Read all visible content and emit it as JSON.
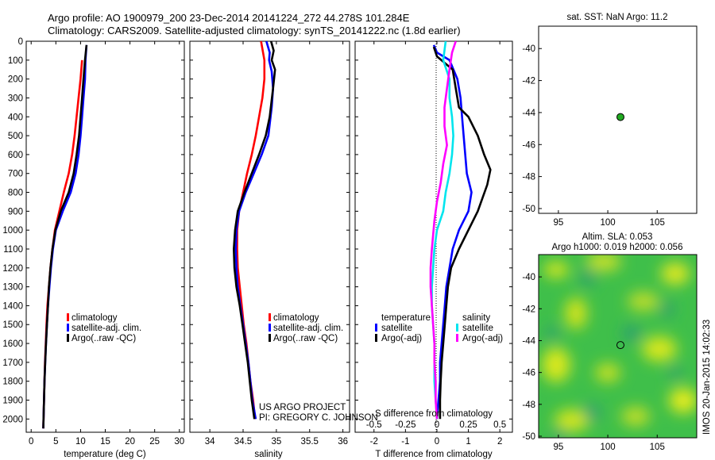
{
  "header": {
    "line1": "Argo profile: AO 1900979_200 23-Dec-2014 20141224_272 44.278S 101.284E",
    "line2": "Climatology: CARS2009. Satellite-adjusted climatology: synTS_20141222.nc (1.8d earlier)"
  },
  "credit": {
    "project": "US ARGO PROJECT",
    "pi": "PI: GREGORY C. JOHNSON"
  },
  "sst_title": "sat. SST: NaN Argo: 11.2",
  "sla_title": {
    "line1": "Altim. SLA: 0.053",
    "line2": "Argo h1000: 0.019 h2000: 0.056"
  },
  "watermark": "IMOS 20-Jan-2015 14:02:33",
  "colors": {
    "climatology": "#ff0000",
    "satellite_adj": "#0000ff",
    "argo": "#000000",
    "sal_satellite": "#00e5ee",
    "sal_argo": "#ff00ff",
    "map_marker": "#22aa22"
  },
  "chart_data": [
    {
      "type": "line",
      "panel": "temperature",
      "xlabel": "temperature (deg C)",
      "ylabel": "",
      "xlim": [
        -1,
        31
      ],
      "ylim": [
        2070,
        0
      ],
      "xticks": [
        "0",
        "5",
        "10",
        "15",
        "20",
        "25",
        "30"
      ],
      "yticks": [
        "0",
        "100",
        "200",
        "300",
        "400",
        "500",
        "600",
        "700",
        "800",
        "900",
        "1000",
        "1100",
        "1200",
        "1300",
        "1400",
        "1500",
        "1600",
        "1700",
        "1800",
        "1900",
        "2000"
      ],
      "legend": [
        "climatology",
        "satellite-adj. clim.",
        "Argo(..raw -QC)"
      ],
      "series": [
        {
          "name": "climatology",
          "color_key": "climatology",
          "points": [
            [
              10.3,
              100
            ],
            [
              10.0,
              200
            ],
            [
              9.6,
              300
            ],
            [
              9.2,
              400
            ],
            [
              8.8,
              500
            ],
            [
              8.3,
              600
            ],
            [
              7.6,
              700
            ],
            [
              6.6,
              800
            ],
            [
              5.7,
              900
            ],
            [
              4.8,
              1000
            ],
            [
              4.3,
              1100
            ],
            [
              3.9,
              1200
            ],
            [
              3.6,
              1300
            ],
            [
              3.3,
              1400
            ],
            [
              3.1,
              1500
            ],
            [
              2.95,
              1600
            ],
            [
              2.8,
              1700
            ],
            [
              2.7,
              1800
            ],
            [
              2.6,
              1900
            ],
            [
              2.5,
              2000
            ],
            [
              2.45,
              2050
            ]
          ]
        },
        {
          "name": "satellite-adj. clim.",
          "color_key": "satellite_adj",
          "points": [
            [
              11.2,
              20
            ],
            [
              11.0,
              100
            ],
            [
              10.9,
              200
            ],
            [
              10.6,
              300
            ],
            [
              10.3,
              400
            ],
            [
              10.0,
              500
            ],
            [
              9.6,
              600
            ],
            [
              9.0,
              700
            ],
            [
              8.0,
              800
            ],
            [
              6.4,
              900
            ],
            [
              5.0,
              1000
            ],
            [
              4.4,
              1100
            ],
            [
              4.0,
              1200
            ],
            [
              3.7,
              1300
            ],
            [
              3.4,
              1400
            ],
            [
              3.2,
              1500
            ],
            [
              3.0,
              1600
            ],
            [
              2.85,
              1700
            ],
            [
              2.7,
              1800
            ],
            [
              2.6,
              1900
            ],
            [
              2.5,
              2000
            ],
            [
              2.45,
              2050
            ]
          ]
        },
        {
          "name": "Argo(..raw -QC)",
          "color_key": "argo",
          "points": [
            [
              11.2,
              20
            ],
            [
              10.9,
              100
            ],
            [
              10.6,
              200
            ],
            [
              10.3,
              300
            ],
            [
              10.0,
              400
            ],
            [
              9.7,
              500
            ],
            [
              9.2,
              600
            ],
            [
              8.6,
              700
            ],
            [
              7.6,
              800
            ],
            [
              6.0,
              900
            ],
            [
              4.9,
              1000
            ],
            [
              4.3,
              1100
            ],
            [
              3.9,
              1200
            ],
            [
              3.6,
              1300
            ],
            [
              3.4,
              1400
            ],
            [
              3.2,
              1500
            ],
            [
              3.0,
              1600
            ],
            [
              2.85,
              1700
            ],
            [
              2.7,
              1800
            ],
            [
              2.6,
              1900
            ],
            [
              2.5,
              2000
            ],
            [
              2.45,
              2050
            ]
          ]
        }
      ]
    },
    {
      "type": "line",
      "panel": "salinity",
      "xlabel": "salinity",
      "ylabel": "",
      "xlim": [
        33.7,
        36.1
      ],
      "ylim": [
        2070,
        0
      ],
      "xticks": [
        "34",
        "34.5",
        "35",
        "35.5",
        "36"
      ],
      "legend": [
        "climatology",
        "satellite-adj. clim.",
        "Argo(..raw -QC)"
      ],
      "series": [
        {
          "name": "climatology",
          "color_key": "climatology",
          "points": [
            [
              34.77,
              0
            ],
            [
              34.82,
              100
            ],
            [
              34.82,
              200
            ],
            [
              34.79,
              300
            ],
            [
              34.74,
              400
            ],
            [
              34.69,
              500
            ],
            [
              34.63,
              600
            ],
            [
              34.56,
              700
            ],
            [
              34.5,
              800
            ],
            [
              34.44,
              900
            ],
            [
              34.41,
              1000
            ],
            [
              34.41,
              1100
            ],
            [
              34.42,
              1200
            ],
            [
              34.45,
              1300
            ],
            [
              34.48,
              1400
            ],
            [
              34.51,
              1500
            ],
            [
              34.55,
              1600
            ],
            [
              34.58,
              1700
            ],
            [
              34.61,
              1800
            ],
            [
              34.65,
              1900
            ],
            [
              34.68,
              2000
            ]
          ]
        },
        {
          "name": "satellite-adj. clim.",
          "color_key": "satellite_adj",
          "points": [
            [
              34.85,
              0
            ],
            [
              34.9,
              60
            ],
            [
              34.89,
              100
            ],
            [
              34.93,
              160
            ],
            [
              34.95,
              250
            ],
            [
              34.93,
              350
            ],
            [
              34.88,
              500
            ],
            [
              34.78,
              600
            ],
            [
              34.66,
              700
            ],
            [
              34.54,
              800
            ],
            [
              34.44,
              900
            ],
            [
              34.4,
              1000
            ],
            [
              34.39,
              1100
            ],
            [
              34.4,
              1200
            ],
            [
              34.42,
              1300
            ],
            [
              34.46,
              1400
            ],
            [
              34.5,
              1500
            ],
            [
              34.54,
              1600
            ],
            [
              34.58,
              1700
            ],
            [
              34.61,
              1800
            ],
            [
              34.64,
              1900
            ],
            [
              34.69,
              2000
            ]
          ]
        },
        {
          "name": "Argo(..raw -QC)",
          "color_key": "argo",
          "points": [
            [
              34.92,
              0
            ],
            [
              34.96,
              50
            ],
            [
              34.93,
              100
            ],
            [
              34.98,
              150
            ],
            [
              34.95,
              250
            ],
            [
              34.9,
              400
            ],
            [
              34.84,
              500
            ],
            [
              34.74,
              600
            ],
            [
              34.63,
              700
            ],
            [
              34.52,
              800
            ],
            [
              34.42,
              900
            ],
            [
              34.38,
              1000
            ],
            [
              34.36,
              1100
            ],
            [
              34.37,
              1200
            ],
            [
              34.4,
              1300
            ],
            [
              34.45,
              1400
            ],
            [
              34.49,
              1500
            ],
            [
              34.53,
              1600
            ],
            [
              34.57,
              1700
            ],
            [
              34.6,
              1800
            ],
            [
              34.63,
              1900
            ],
            [
              34.67,
              2000
            ]
          ]
        }
      ]
    },
    {
      "type": "line",
      "panel": "difference",
      "xlabel": "T difference from climatology",
      "x2label": "S difference from climatology",
      "ylabel": "",
      "xlim": [
        -2.6,
        2.4
      ],
      "ylim": [
        2070,
        0
      ],
      "xticks": [
        "-2",
        "-1",
        "0",
        "1",
        "2"
      ],
      "x2ticks": [
        "-0.5",
        "-0.25",
        "0",
        "0.25",
        "0.5"
      ],
      "x2lim": [
        -0.65,
        0.6
      ],
      "legend_headers": [
        "temperature",
        "salinity"
      ],
      "legend": [
        "satellite",
        "Argo(-adj)",
        "satellite",
        "Argo(-adj)"
      ],
      "series": [
        {
          "name": "satellite",
          "quantity": "temperature",
          "color_key": "satellite_adj",
          "points": [
            [
              -0.1,
              20
            ],
            [
              0.0,
              60
            ],
            [
              0.4,
              100
            ],
            [
              0.65,
              200
            ],
            [
              0.75,
              300
            ],
            [
              0.8,
              400
            ],
            [
              0.85,
              500
            ],
            [
              0.9,
              600
            ],
            [
              0.95,
              700
            ],
            [
              1.1,
              800
            ],
            [
              1.0,
              900
            ],
            [
              0.7,
              1000
            ],
            [
              0.5,
              1100
            ],
            [
              0.4,
              1200
            ],
            [
              0.3,
              1300
            ],
            [
              0.25,
              1400
            ],
            [
              0.2,
              1500
            ],
            [
              0.15,
              1600
            ],
            [
              0.1,
              1700
            ],
            [
              0.1,
              1800
            ],
            [
              0.05,
              1900
            ],
            [
              0.0,
              2000
            ]
          ]
        },
        {
          "name": "Argo(-adj)",
          "quantity": "temperature",
          "color_key": "argo",
          "points": [
            [
              -0.1,
              30
            ],
            [
              0.0,
              80
            ],
            [
              0.5,
              150
            ],
            [
              0.6,
              250
            ],
            [
              0.7,
              350
            ],
            [
              1.0,
              400
            ],
            [
              1.3,
              500
            ],
            [
              1.5,
              600
            ],
            [
              1.7,
              680
            ],
            [
              1.6,
              760
            ],
            [
              1.3,
              900
            ],
            [
              0.7,
              1100
            ],
            [
              0.45,
              1200
            ],
            [
              0.35,
              1300
            ],
            [
              0.3,
              1400
            ],
            [
              0.25,
              1500
            ],
            [
              0.2,
              1600
            ],
            [
              0.15,
              1700
            ],
            [
              0.12,
              1800
            ],
            [
              0.1,
              1900
            ],
            [
              0.1,
              2000
            ]
          ]
        },
        {
          "name": "satellite",
          "quantity": "salinity",
          "color_key": "sal_satellite",
          "points": [
            [
              0.07,
              0
            ],
            [
              0.05,
              100
            ],
            [
              0.1,
              200
            ],
            [
              0.1,
              300
            ],
            [
              0.12,
              400
            ],
            [
              0.13,
              500
            ],
            [
              0.12,
              600
            ],
            [
              0.1,
              700
            ],
            [
              0.07,
              800
            ],
            [
              0.05,
              900
            ],
            [
              0.0,
              1000
            ],
            [
              -0.02,
              1100
            ],
            [
              -0.03,
              1200
            ],
            [
              -0.04,
              1300
            ],
            [
              -0.04,
              1400
            ],
            [
              -0.03,
              1500
            ],
            [
              -0.02,
              1600
            ],
            [
              -0.02,
              1700
            ],
            [
              -0.02,
              1800
            ],
            [
              -0.01,
              1900
            ],
            [
              0.0,
              2000
            ]
          ]
        },
        {
          "name": "Argo(-adj)",
          "quantity": "salinity",
          "color_key": "sal_argo",
          "points": [
            [
              0.15,
              0
            ],
            [
              0.12,
              60
            ],
            [
              0.1,
              150
            ],
            [
              0.08,
              250
            ],
            [
              0.06,
              350
            ],
            [
              0.06,
              450
            ],
            [
              0.08,
              550
            ],
            [
              0.05,
              650
            ],
            [
              0.03,
              750
            ],
            [
              0.0,
              850
            ],
            [
              -0.02,
              950
            ],
            [
              -0.04,
              1100
            ],
            [
              -0.05,
              1200
            ],
            [
              -0.05,
              1300
            ],
            [
              -0.04,
              1400
            ],
            [
              -0.03,
              1500
            ],
            [
              -0.02,
              1600
            ],
            [
              -0.02,
              1700
            ],
            [
              -0.01,
              1800
            ],
            [
              -0.01,
              1900
            ],
            [
              0.0,
              2000
            ]
          ]
        }
      ]
    },
    {
      "type": "scatter",
      "panel": "sst_map",
      "title": "sat. SST: NaN Argo: 11.2",
      "xlim": [
        93,
        109
      ],
      "ylim": [
        -50.3,
        -38.6
      ],
      "xticks": [
        "95",
        "100",
        "105"
      ],
      "yticks": [
        "-40",
        "-42",
        "-44",
        "-46",
        "-48",
        "-50"
      ],
      "points": [
        [
          101.28,
          -44.28
        ]
      ]
    },
    {
      "type": "heatmap",
      "panel": "sla_map",
      "title": "Altim. SLA: 0.053 / Argo h1000: 0.019 h2000: 0.056",
      "xlim": [
        93,
        109
      ],
      "ylim": [
        -50.1,
        -38.6
      ],
      "xticks": [
        "95",
        "100",
        "105"
      ],
      "yticks": [
        "-40",
        "-42",
        "-44",
        "-46",
        "-48",
        "-50"
      ],
      "points": [
        [
          101.28,
          -44.28
        ]
      ]
    }
  ]
}
